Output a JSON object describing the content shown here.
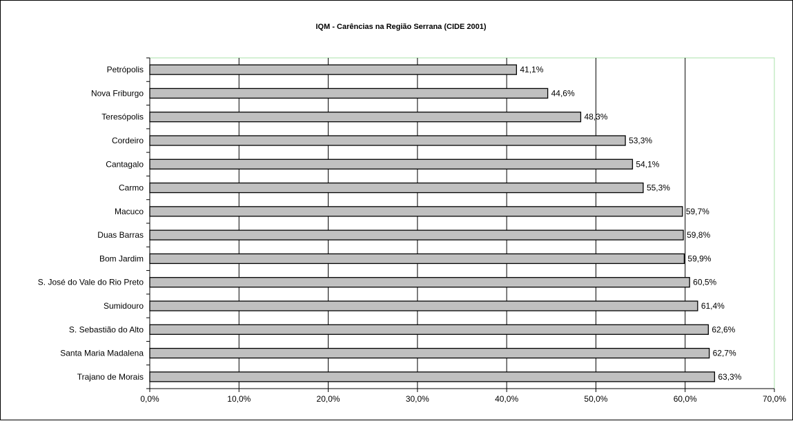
{
  "chart_data": {
    "type": "bar",
    "orientation": "horizontal",
    "title": "IQM - Carências na Região Serrana (CIDE 2001)",
    "xlabel": "",
    "ylabel": "",
    "xlim": [
      0,
      70
    ],
    "x_ticks": [
      "0,0%",
      "10,0%",
      "20,0%",
      "30,0%",
      "40,0%",
      "50,0%",
      "60,0%",
      "70,0%"
    ],
    "grid": "vertical major gridlines",
    "legend": "none",
    "colors": {
      "bar_fill": "#c0c0c0",
      "bar_stroke": "#000000",
      "plot_border": "#a8e0a8"
    },
    "categories": [
      "Petrópolis",
      "Nova Friburgo",
      "Teresópolis",
      "Cordeiro",
      "Cantagalo",
      "Carmo",
      "Macuco",
      "Duas Barras",
      "Bom Jardim",
      "S. José do Vale do Rio Preto",
      "Sumidouro",
      "S. Sebastião do Alto",
      "Santa Maria Madalena",
      "Trajano de Morais"
    ],
    "values": [
      41.1,
      44.6,
      48.3,
      53.3,
      54.1,
      55.3,
      59.7,
      59.8,
      59.9,
      60.5,
      61.4,
      62.6,
      62.7,
      63.3
    ],
    "data_labels": [
      "41,1%",
      "44,6%",
      "48,3%",
      "53,3%",
      "54,1%",
      "55,3%",
      "59,7%",
      "59,8%",
      "59,9%",
      "60,5%",
      "61,4%",
      "62,6%",
      "62,7%",
      "63,3%"
    ]
  }
}
